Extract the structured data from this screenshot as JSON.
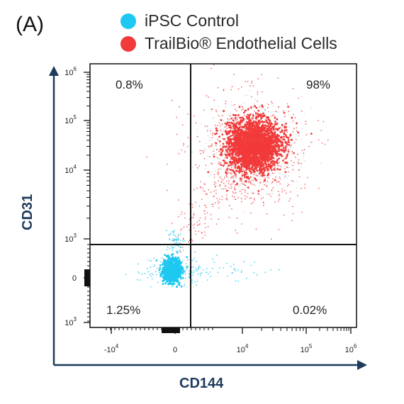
{
  "panel_label": "(A)",
  "legend": [
    {
      "label": "iPSC Control",
      "color": "#1ec8f0"
    },
    {
      "label": "TrailBio® Endothelial Cells",
      "color": "#f23a3a"
    }
  ],
  "chart_data": {
    "type": "scatter",
    "xlabel": "CD144",
    "ylabel": "CD31",
    "x_scale": "biexponential",
    "y_scale": "biexponential",
    "x_ticks": [
      {
        "base": "-10",
        "exp": "4"
      },
      {
        "base": "0",
        "exp": ""
      },
      {
        "base": "10",
        "exp": "4"
      },
      {
        "base": "10",
        "exp": "5"
      },
      {
        "base": "10",
        "exp": "6"
      }
    ],
    "y_ticks": [
      {
        "base": "10",
        "exp": "6"
      },
      {
        "base": "10",
        "exp": "5"
      },
      {
        "base": "10",
        "exp": "4"
      },
      {
        "base": "10",
        "exp": "3"
      },
      {
        "base": "0",
        "exp": ""
      },
      {
        "base": "10",
        "exp": "3"
      }
    ],
    "quadrant_gate": {
      "x": 1500,
      "y": 800
    },
    "quadrants": {
      "upper_left": "0.8%",
      "upper_right": "98%",
      "lower_left": "1.25%",
      "lower_right": "0.02%"
    },
    "populations": [
      {
        "name": "iPSC Control",
        "color": "#1ec8f0",
        "x_center": 0,
        "y_center": 0
      },
      {
        "name": "TrailBio® Endothelial Cells",
        "color": "#f23a3a",
        "x_center": 20000,
        "y_center": 30000
      }
    ],
    "grid": false
  }
}
